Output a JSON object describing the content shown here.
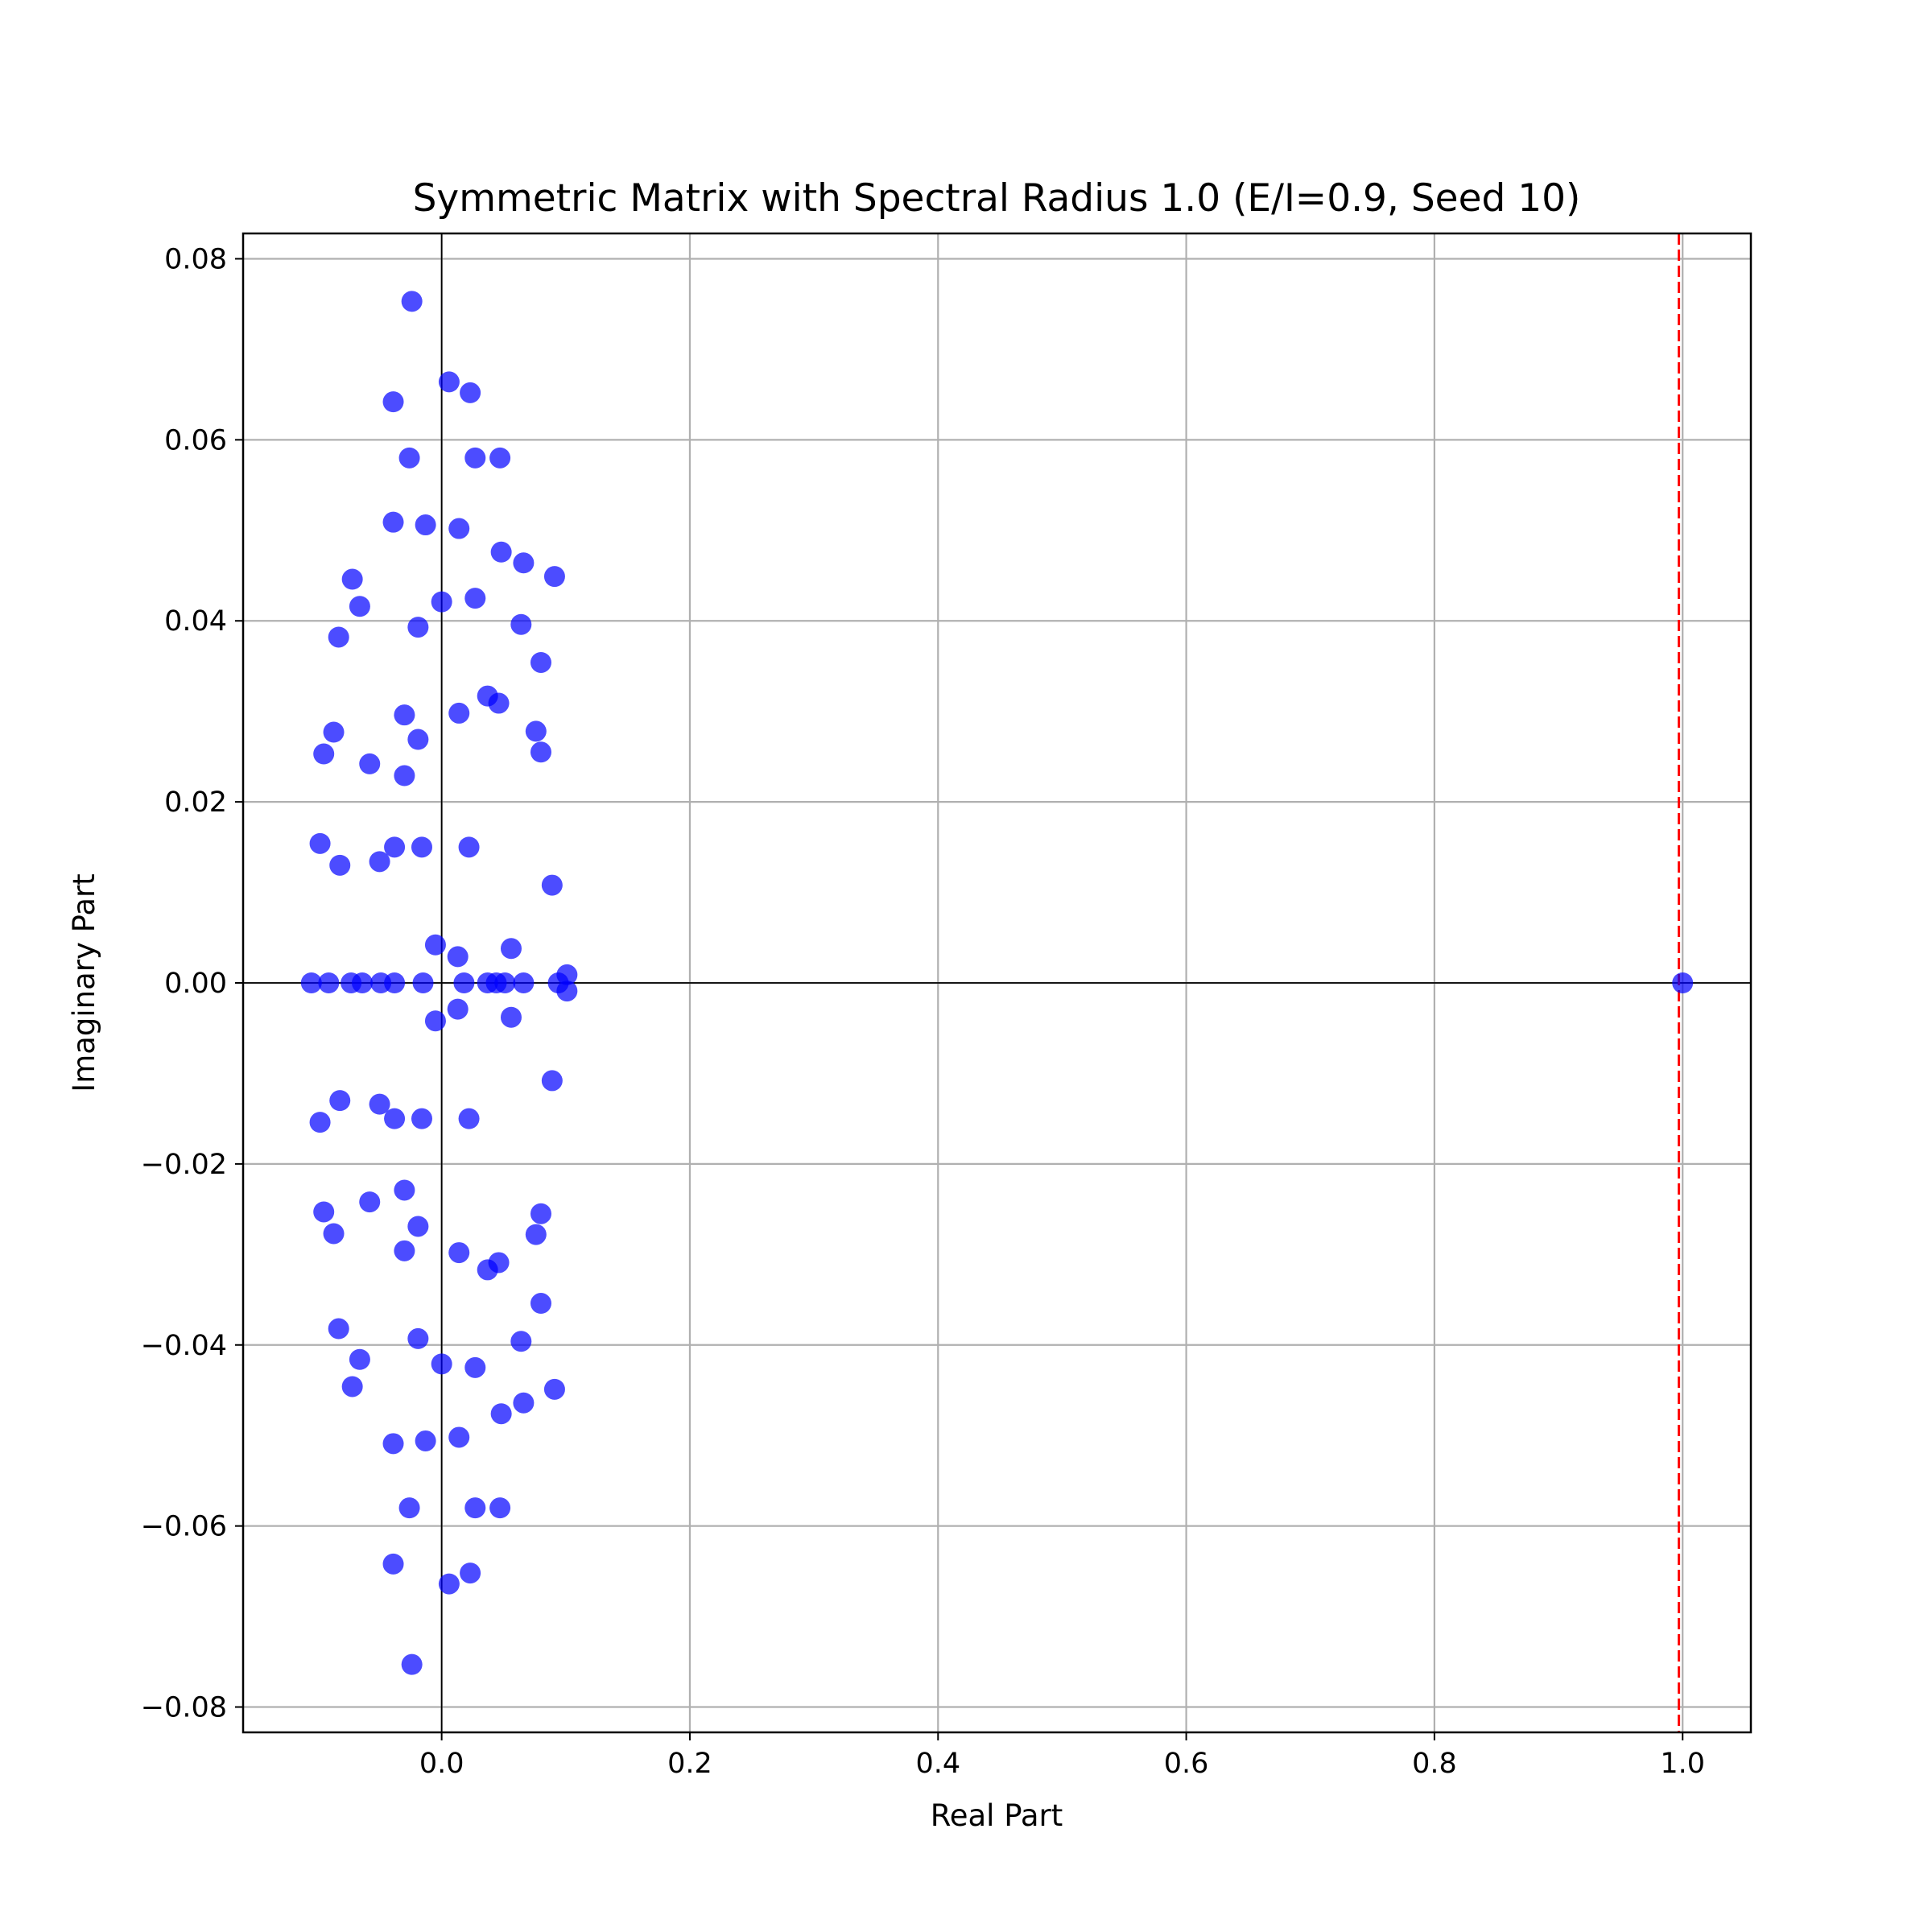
{
  "chart_data": {
    "type": "scatter",
    "title": "Symmetric Matrix with Spectral Radius 1.0 (E/I=0.9, Seed 10)",
    "xlabel": "Real Part",
    "ylabel": "Imaginary Part",
    "xlim": [
      -0.16,
      1.055
    ],
    "ylim": [
      -0.0828,
      0.0828
    ],
    "xticks": [
      0.0,
      0.2,
      0.4,
      0.6,
      0.8,
      1.0
    ],
    "xtick_labels": [
      "0.0",
      "0.2",
      "0.4",
      "0.6",
      "0.8",
      "1.0"
    ],
    "yticks": [
      0.08,
      0.06,
      0.04,
      0.02,
      0.0,
      -0.02,
      -0.04,
      -0.06,
      -0.08
    ],
    "ytick_labels": [
      "0.08",
      "0.06",
      "0.04",
      "0.02",
      "0.00",
      "−0.02",
      "−0.04",
      "−0.06",
      "−0.08"
    ],
    "grid": true,
    "point_color": "#0000ff",
    "reference_line": {
      "x": 0.997,
      "color": "#ff0000",
      "style": "dashed"
    },
    "zero_lines": {
      "x": 0.0,
      "y": 0.0,
      "color": "#000000"
    },
    "series": [
      {
        "points": [
          [
            -0.024,
            0.0753
          ],
          [
            -0.024,
            -0.0753
          ],
          [
            0.006,
            0.0664
          ],
          [
            0.006,
            -0.0664
          ],
          [
            0.023,
            0.0652
          ],
          [
            0.023,
            -0.0652
          ],
          [
            -0.039,
            0.0642
          ],
          [
            -0.039,
            -0.0642
          ],
          [
            -0.026,
            0.058
          ],
          [
            -0.026,
            -0.058
          ],
          [
            0.027,
            0.058
          ],
          [
            0.027,
            -0.058
          ],
          [
            0.047,
            0.058
          ],
          [
            0.047,
            -0.058
          ],
          [
            -0.039,
            0.0509
          ],
          [
            -0.039,
            -0.0509
          ],
          [
            -0.013,
            0.0506
          ],
          [
            -0.013,
            -0.0506
          ],
          [
            0.014,
            0.0502
          ],
          [
            0.014,
            -0.0502
          ],
          [
            0.048,
            0.0476
          ],
          [
            0.048,
            -0.0476
          ],
          [
            0.066,
            0.0464
          ],
          [
            0.066,
            -0.0464
          ],
          [
            0.091,
            0.0449
          ],
          [
            0.091,
            -0.0449
          ],
          [
            -0.072,
            0.0446
          ],
          [
            -0.072,
            -0.0446
          ],
          [
            0.027,
            0.0425
          ],
          [
            0.027,
            -0.0425
          ],
          [
            0.0,
            0.0421
          ],
          [
            0.0,
            -0.0421
          ],
          [
            -0.066,
            0.0416
          ],
          [
            -0.066,
            -0.0416
          ],
          [
            0.064,
            0.0396
          ],
          [
            0.064,
            -0.0396
          ],
          [
            -0.019,
            0.0393
          ],
          [
            -0.019,
            -0.0393
          ],
          [
            -0.083,
            0.0382
          ],
          [
            -0.083,
            -0.0382
          ],
          [
            0.08,
            0.0354
          ],
          [
            0.08,
            -0.0354
          ],
          [
            0.037,
            0.0317
          ],
          [
            0.037,
            -0.0317
          ],
          [
            0.046,
            0.0309
          ],
          [
            0.046,
            -0.0309
          ],
          [
            0.014,
            0.0298
          ],
          [
            0.014,
            -0.0298
          ],
          [
            -0.03,
            0.0296
          ],
          [
            -0.03,
            -0.0296
          ],
          [
            -0.087,
            0.0277
          ],
          [
            -0.087,
            -0.0277
          ],
          [
            0.076,
            0.0278
          ],
          [
            0.076,
            -0.0278
          ],
          [
            -0.019,
            0.0269
          ],
          [
            -0.019,
            -0.0269
          ],
          [
            0.08,
            0.0255
          ],
          [
            0.08,
            -0.0255
          ],
          [
            -0.095,
            0.0253
          ],
          [
            -0.095,
            -0.0253
          ],
          [
            -0.058,
            0.0242
          ],
          [
            -0.058,
            -0.0242
          ],
          [
            -0.03,
            0.0229
          ],
          [
            -0.03,
            -0.0229
          ],
          [
            -0.098,
            0.0154
          ],
          [
            -0.098,
            -0.0154
          ],
          [
            -0.038,
            0.015
          ],
          [
            -0.038,
            -0.015
          ],
          [
            -0.016,
            0.015
          ],
          [
            -0.016,
            -0.015
          ],
          [
            0.022,
            0.015
          ],
          [
            0.022,
            -0.015
          ],
          [
            -0.05,
            0.0134
          ],
          [
            -0.05,
            -0.0134
          ],
          [
            -0.082,
            0.013
          ],
          [
            -0.082,
            -0.013
          ],
          [
            0.089,
            0.0108
          ],
          [
            0.089,
            -0.0108
          ],
          [
            -0.005,
            0.0042
          ],
          [
            -0.005,
            -0.0042
          ],
          [
            0.056,
            0.0038
          ],
          [
            0.056,
            -0.0038
          ],
          [
            0.013,
            0.0029
          ],
          [
            0.013,
            -0.0029
          ],
          [
            0.101,
            0.0009
          ],
          [
            0.101,
            -0.0009
          ],
          [
            -0.105,
            0.0
          ],
          [
            -0.091,
            0.0
          ],
          [
            -0.073,
            0.0
          ],
          [
            -0.064,
            0.0
          ],
          [
            -0.049,
            0.0
          ],
          [
            -0.038,
            0.0
          ],
          [
            -0.015,
            0.0
          ],
          [
            0.018,
            0.0
          ],
          [
            0.037,
            0.0
          ],
          [
            0.044,
            0.0
          ],
          [
            0.051,
            0.0
          ],
          [
            0.066,
            0.0
          ],
          [
            0.094,
            0.0
          ],
          [
            1.0,
            0.0
          ]
        ]
      }
    ]
  }
}
